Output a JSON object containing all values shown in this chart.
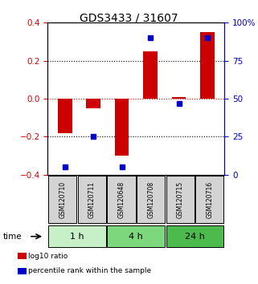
{
  "title": "GDS3433 / 31607",
  "samples": [
    "GSM120710",
    "GSM120711",
    "GSM120648",
    "GSM120708",
    "GSM120715",
    "GSM120716"
  ],
  "log10_ratio": [
    -0.18,
    -0.05,
    -0.3,
    0.25,
    0.01,
    0.35
  ],
  "percentile_rank": [
    5,
    25,
    5,
    90,
    47,
    90
  ],
  "ylim_left": [
    -0.4,
    0.4
  ],
  "ylim_right": [
    0,
    100
  ],
  "yticks_left": [
    -0.4,
    -0.2,
    0.0,
    0.2,
    0.4
  ],
  "yticks_right": [
    0,
    25,
    50,
    75,
    100
  ],
  "ytick_labels_right": [
    "0",
    "25",
    "50",
    "75",
    "100%"
  ],
  "bar_color": "#cc0000",
  "dot_color": "#0000cc",
  "time_groups": [
    {
      "label": "1 h",
      "n_samples": 2,
      "color": "#c8f0c8"
    },
    {
      "label": "4 h",
      "n_samples": 2,
      "color": "#7dd87d"
    },
    {
      "label": "24 h",
      "n_samples": 2,
      "color": "#4cba4c"
    }
  ],
  "legend": [
    {
      "label": "log10 ratio",
      "color": "#cc0000"
    },
    {
      "label": "percentile rank within the sample",
      "color": "#0000cc"
    }
  ],
  "bar_width": 0.5
}
